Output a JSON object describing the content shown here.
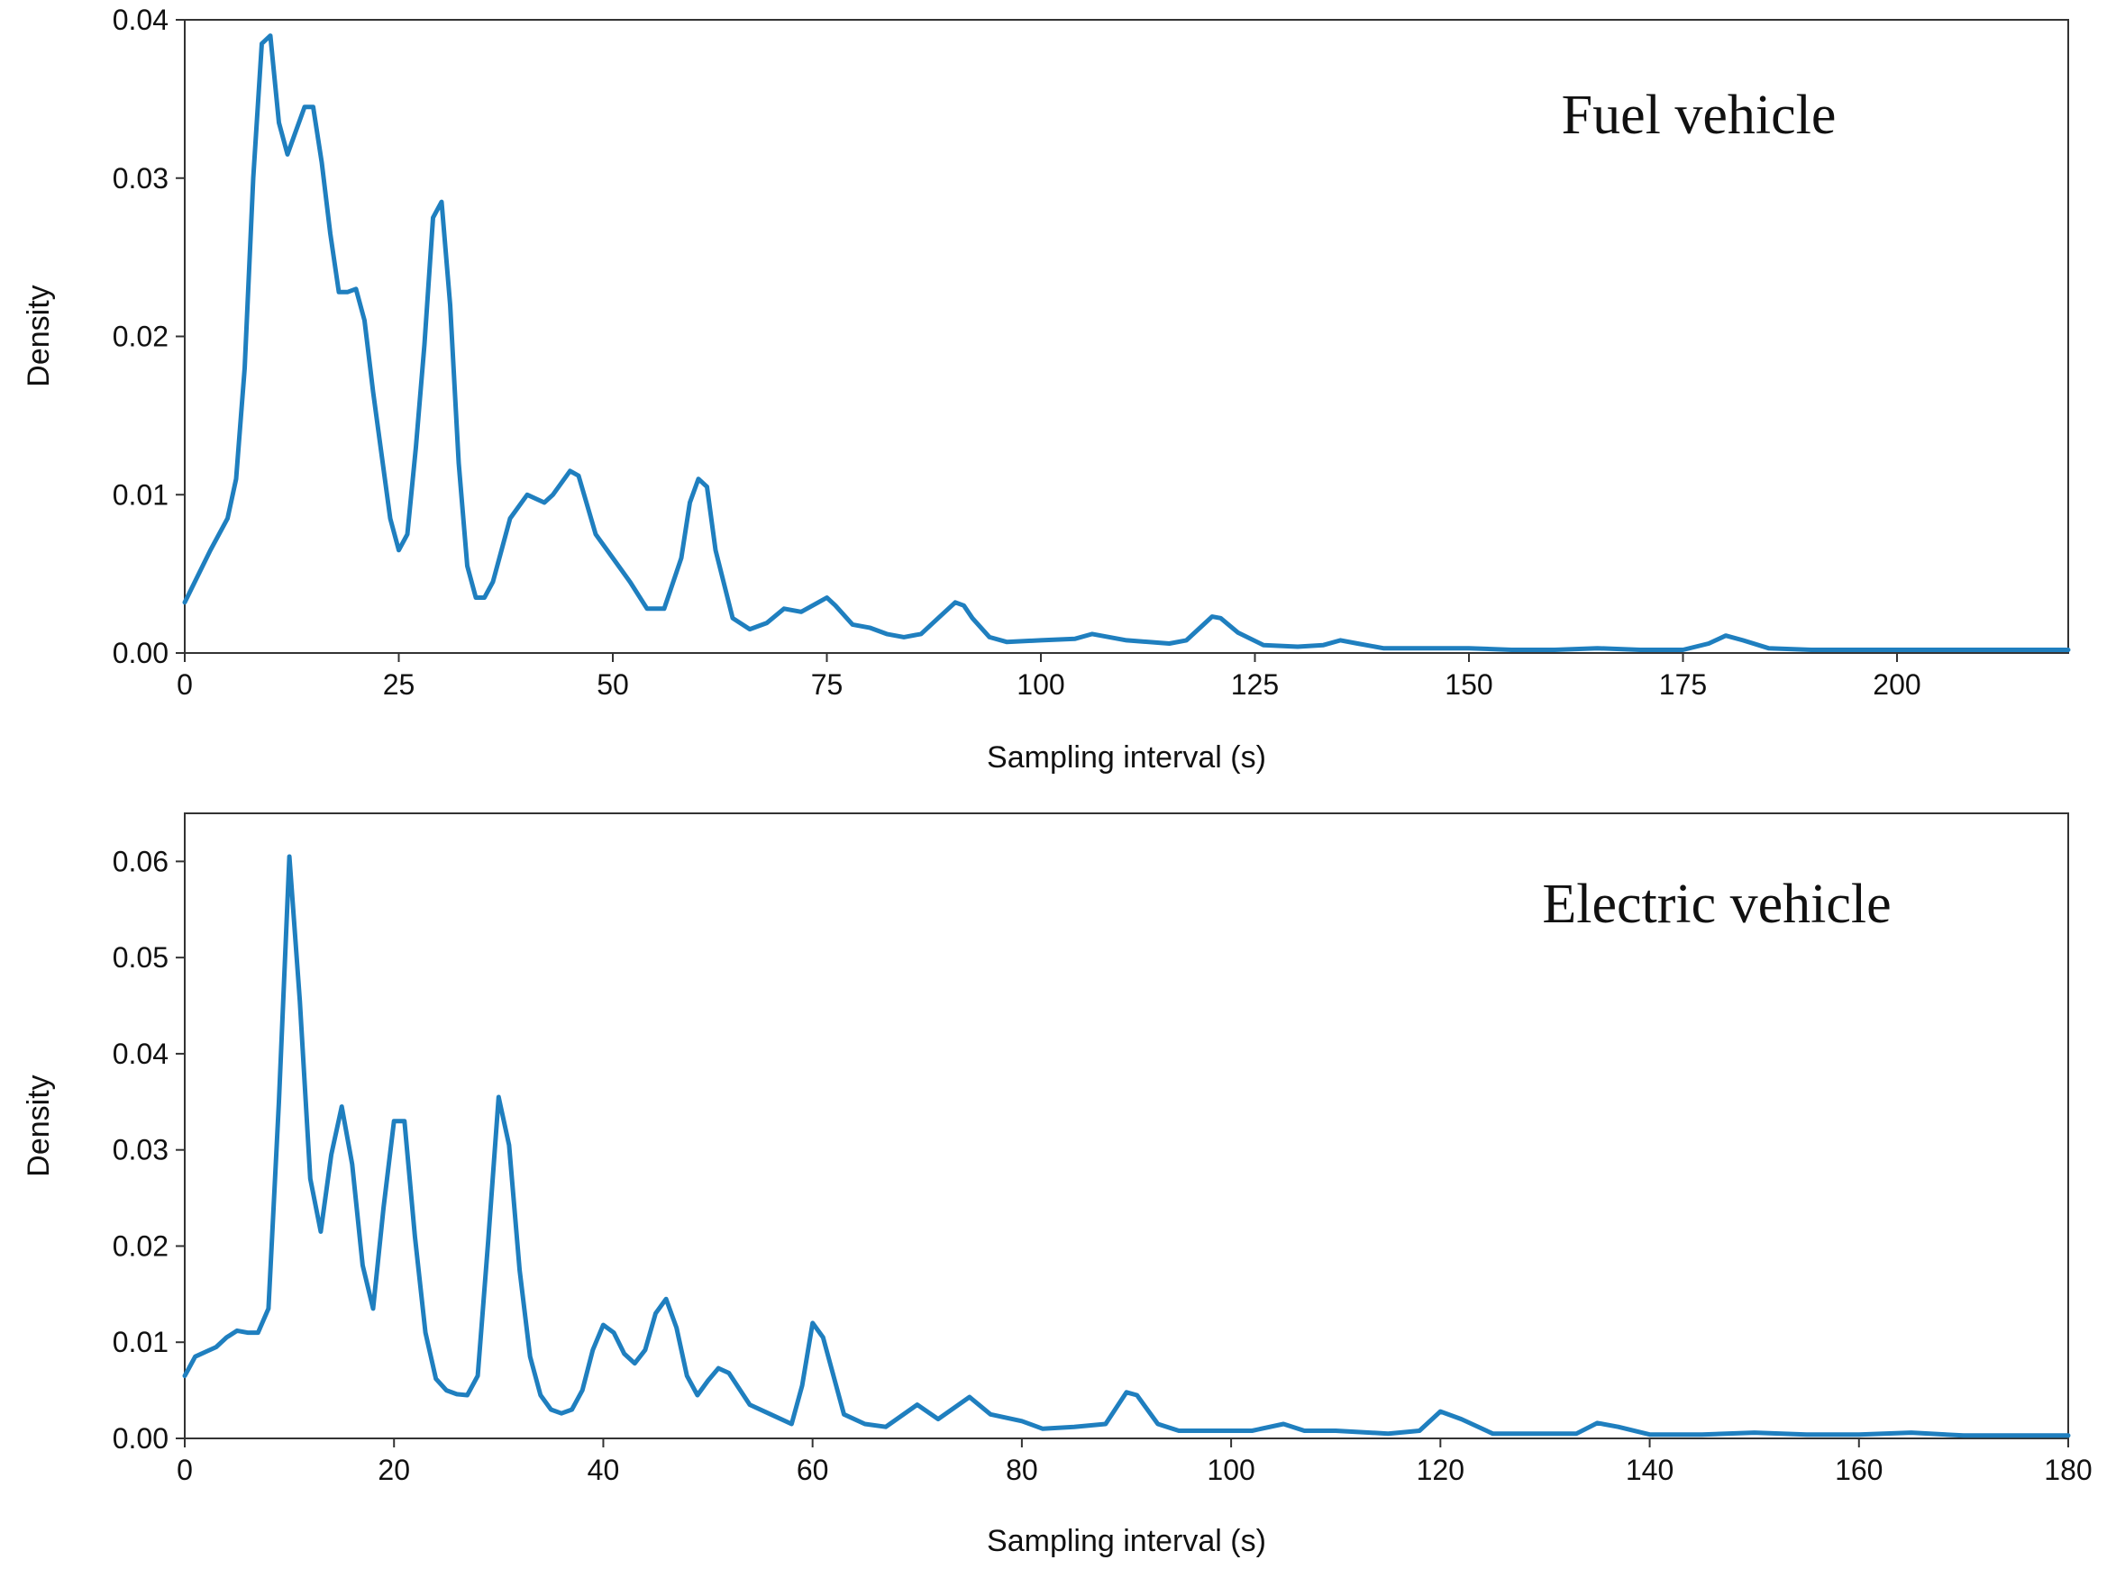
{
  "colors": {
    "line": "#1f7fbf",
    "axis": "#333333",
    "text": "#111111"
  },
  "chart_data": [
    {
      "type": "line",
      "title": "Fuel vehicle",
      "xlabel": "Sampling interval (s)",
      "ylabel": "Density",
      "xlim": [
        0,
        220
      ],
      "ylim": [
        0,
        0.04
      ],
      "xticks": [
        0,
        25,
        50,
        75,
        100,
        125,
        150,
        175,
        200
      ],
      "yticks": [
        0.0,
        0.01,
        0.02,
        0.03,
        0.04
      ],
      "ytick_labels": [
        "0.00",
        "0.01",
        "0.02",
        "0.03",
        "0.04"
      ],
      "series": [
        {
          "name": "Density",
          "x": [
            0,
            3,
            5,
            6,
            7,
            8,
            9,
            10,
            11,
            12,
            13,
            14,
            15,
            16,
            17,
            18,
            19,
            20,
            21,
            22,
            24,
            25,
            26,
            27,
            28,
            29,
            30,
            31,
            32,
            33,
            34,
            35,
            36,
            37,
            38,
            40,
            42,
            43,
            45,
            46,
            48,
            50,
            52,
            54,
            56,
            58,
            59,
            60,
            61,
            62,
            64,
            66,
            68,
            70,
            72,
            74,
            75,
            76,
            78,
            80,
            82,
            84,
            86,
            88,
            90,
            91,
            92,
            94,
            96,
            100,
            104,
            106,
            110,
            115,
            117,
            119,
            120,
            121,
            123,
            126,
            130,
            133,
            135,
            137,
            140,
            145,
            150,
            155,
            160,
            165,
            170,
            175,
            178,
            180,
            182,
            185,
            190,
            200,
            210,
            220
          ],
          "y": [
            0.0032,
            0.0065,
            0.0085,
            0.011,
            0.018,
            0.03,
            0.0385,
            0.039,
            0.0335,
            0.0315,
            0.033,
            0.0345,
            0.0345,
            0.031,
            0.0265,
            0.0228,
            0.0228,
            0.023,
            0.021,
            0.0165,
            0.0085,
            0.0065,
            0.0075,
            0.013,
            0.0195,
            0.0275,
            0.0285,
            0.022,
            0.012,
            0.0055,
            0.0035,
            0.0035,
            0.0045,
            0.0065,
            0.0085,
            0.01,
            0.0095,
            0.01,
            0.0115,
            0.0112,
            0.0075,
            0.006,
            0.0045,
            0.0028,
            0.0028,
            0.006,
            0.0095,
            0.011,
            0.0105,
            0.0065,
            0.0022,
            0.0015,
            0.0019,
            0.0028,
            0.0026,
            0.0032,
            0.0035,
            0.003,
            0.0018,
            0.0016,
            0.0012,
            0.001,
            0.0012,
            0.0022,
            0.0032,
            0.003,
            0.0022,
            0.001,
            0.0007,
            0.0008,
            0.0009,
            0.0012,
            0.0008,
            0.0006,
            0.0008,
            0.0018,
            0.0023,
            0.0022,
            0.0013,
            0.0005,
            0.0004,
            0.0005,
            0.0008,
            0.0006,
            0.0003,
            0.0003,
            0.0003,
            0.0002,
            0.0002,
            0.0003,
            0.0002,
            0.0002,
            0.0006,
            0.0011,
            0.0008,
            0.0003,
            0.0002,
            0.0002,
            0.0002,
            0.0002
          ]
        }
      ]
    },
    {
      "type": "line",
      "title": "Electric vehicle",
      "xlabel": "Sampling interval (s)",
      "ylabel": "Density",
      "xlim": [
        0,
        180
      ],
      "ylim": [
        0,
        0.065
      ],
      "xticks": [
        0,
        20,
        40,
        60,
        80,
        100,
        120,
        140,
        160,
        180
      ],
      "yticks": [
        0.0,
        0.01,
        0.02,
        0.03,
        0.04,
        0.05,
        0.06
      ],
      "ytick_labels": [
        "0.00",
        "0.01",
        "0.02",
        "0.03",
        "0.04",
        "0.05",
        "0.06"
      ],
      "series": [
        {
          "name": "Density",
          "x": [
            0,
            1,
            2,
            3,
            4,
            5,
            6,
            7,
            8,
            9,
            10,
            11,
            12,
            13,
            14,
            15,
            16,
            17,
            18,
            19,
            20,
            21,
            22,
            23,
            24,
            25,
            26,
            27,
            28,
            29,
            30,
            31,
            32,
            33,
            34,
            35,
            36,
            37,
            38,
            39,
            40,
            41,
            42,
            43,
            44,
            45,
            46,
            47,
            48,
            49,
            50,
            51,
            52,
            54,
            56,
            58,
            59,
            60,
            61,
            62,
            63,
            65,
            67,
            70,
            72,
            75,
            77,
            80,
            82,
            85,
            88,
            90,
            91,
            93,
            95,
            100,
            102,
            105,
            107,
            110,
            115,
            118,
            120,
            122,
            125,
            130,
            133,
            135,
            137,
            140,
            145,
            150,
            155,
            160,
            165,
            170,
            180
          ],
          "y": [
            0.0065,
            0.0085,
            0.009,
            0.0095,
            0.0105,
            0.0112,
            0.011,
            0.011,
            0.0135,
            0.035,
            0.0605,
            0.0455,
            0.027,
            0.0215,
            0.0295,
            0.0345,
            0.0285,
            0.018,
            0.0135,
            0.024,
            0.033,
            0.033,
            0.021,
            0.011,
            0.0062,
            0.005,
            0.0046,
            0.0045,
            0.0065,
            0.0205,
            0.0355,
            0.0305,
            0.0175,
            0.0085,
            0.0045,
            0.003,
            0.0026,
            0.003,
            0.005,
            0.0092,
            0.0118,
            0.011,
            0.0088,
            0.0078,
            0.0092,
            0.013,
            0.0145,
            0.0115,
            0.0065,
            0.0045,
            0.006,
            0.0073,
            0.0068,
            0.0035,
            0.0025,
            0.0015,
            0.0055,
            0.012,
            0.0105,
            0.0065,
            0.0025,
            0.0015,
            0.0012,
            0.0035,
            0.002,
            0.0043,
            0.0025,
            0.0018,
            0.001,
            0.0012,
            0.0015,
            0.0048,
            0.0045,
            0.0015,
            0.0008,
            0.0008,
            0.0008,
            0.0015,
            0.0008,
            0.0008,
            0.0005,
            0.0008,
            0.0028,
            0.002,
            0.0005,
            0.0005,
            0.0005,
            0.0016,
            0.0012,
            0.0004,
            0.0004,
            0.0006,
            0.0004,
            0.0004,
            0.0006,
            0.0003,
            0.0003
          ]
        }
      ]
    }
  ]
}
